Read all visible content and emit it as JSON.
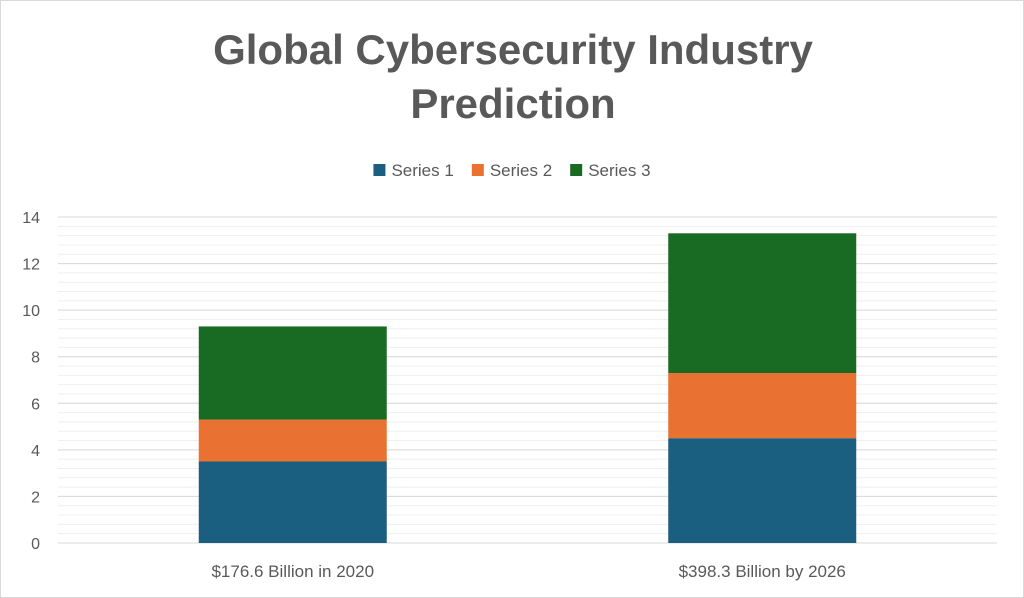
{
  "chart_data": {
    "type": "bar",
    "stacked": true,
    "title": "Global Cybersecurity Industry Prediction",
    "title_lines": [
      "Global Cybersecurity Industry",
      "Prediction"
    ],
    "categories": [
      "$176.6 Billion in 2020",
      "$398.3 Billion by 2026"
    ],
    "series": [
      {
        "name": "Series 1",
        "values": [
          3.5,
          4.5
        ],
        "color": "#1a5f7f"
      },
      {
        "name": "Series 2",
        "values": [
          1.8,
          2.8
        ],
        "color": "#e97132"
      },
      {
        "name": "Series 3",
        "values": [
          4.0,
          6.0
        ],
        "color": "#196b24"
      }
    ],
    "ylim": [
      0,
      14
    ],
    "yticks": [
      "0",
      "2",
      "4",
      "6",
      "8",
      "10",
      "12",
      "14"
    ],
    "grid": true,
    "legend": "top-center",
    "xlabel": "",
    "ylabel": ""
  }
}
